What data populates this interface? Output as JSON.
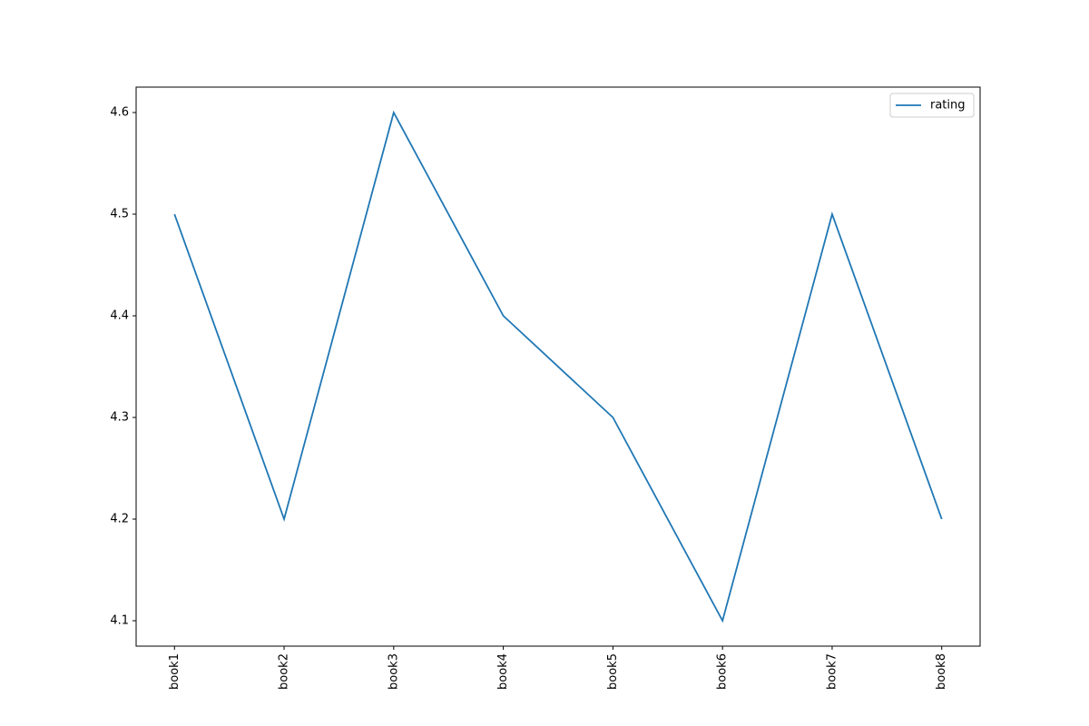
{
  "chart_data": {
    "type": "line",
    "categories": [
      "book1",
      "book2",
      "book3",
      "book4",
      "book5",
      "book6",
      "book7",
      "book8"
    ],
    "series": [
      {
        "name": "rating",
        "color": "#1f77b4",
        "values": [
          4.5,
          4.2,
          4.6,
          4.4,
          4.3,
          4.1,
          4.5,
          4.2
        ]
      }
    ],
    "ylim": [
      4.075,
      4.625
    ],
    "yticks": [
      4.1,
      4.2,
      4.3,
      4.4,
      4.5,
      4.6
    ],
    "grid": false,
    "legend": "upper right"
  }
}
